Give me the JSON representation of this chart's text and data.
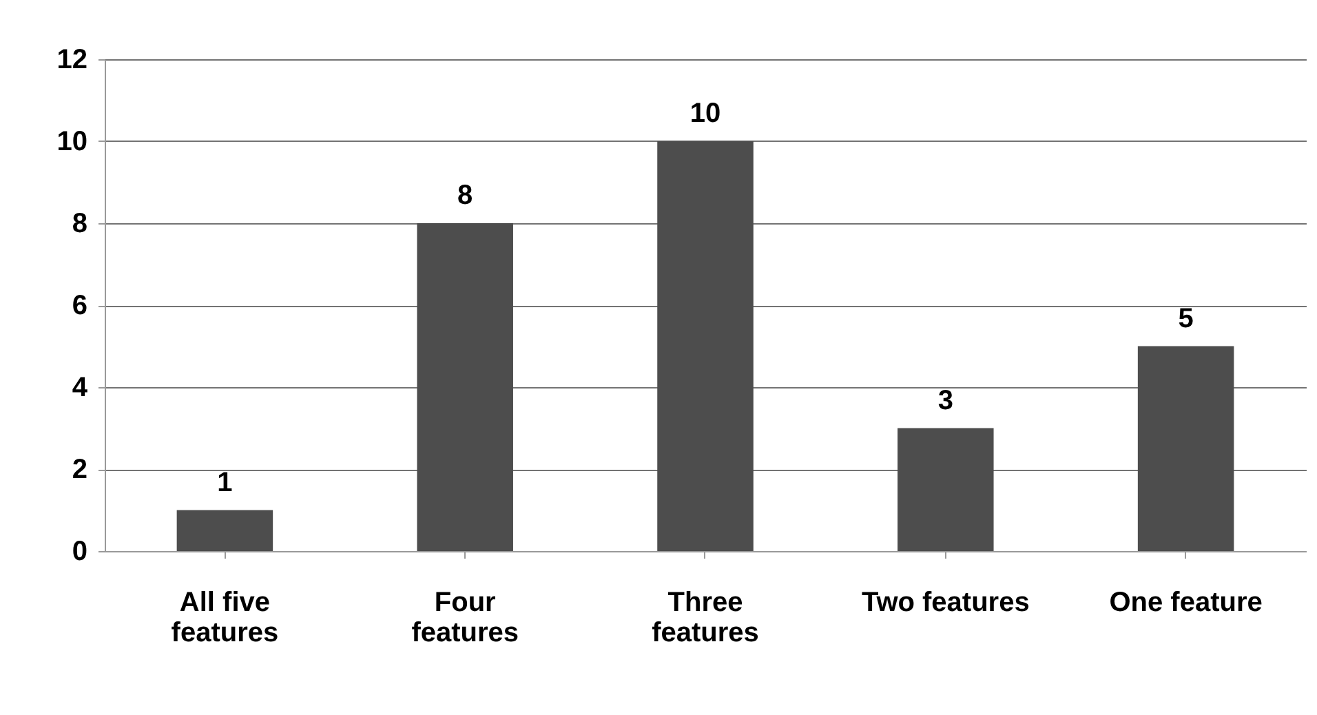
{
  "chart_data": {
    "type": "bar",
    "categories": [
      "All five features",
      "Four features",
      "Three features",
      "Two features",
      "One feature"
    ],
    "values": [
      1,
      8,
      10,
      3,
      5
    ],
    "color": "#4d4d4d",
    "ylim": [
      0,
      12
    ],
    "yticks": [
      0,
      2,
      4,
      6,
      8,
      10,
      12
    ],
    "grid": "y",
    "data_labels": true
  }
}
